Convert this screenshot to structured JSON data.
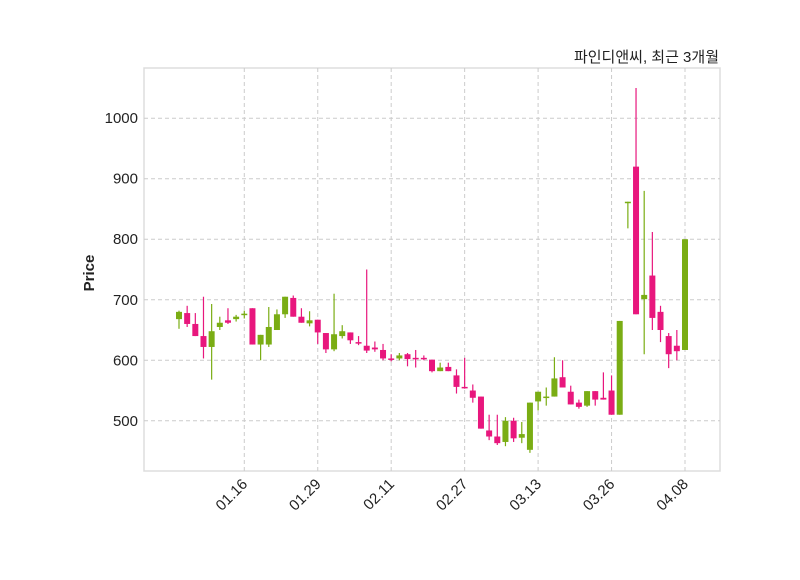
{
  "chart_data": {
    "type": "candlestick",
    "title": "파인디앤씨, 최근 3개월",
    "xlabel": "",
    "ylabel": "Price",
    "ylim": [
      417,
      1083
    ],
    "yticks": [
      500,
      600,
      700,
      800,
      900,
      1000
    ],
    "xtick_labels": [
      {
        "index": 8,
        "label": "01.16"
      },
      {
        "index": 17,
        "label": "01.29"
      },
      {
        "index": 26,
        "label": "02.11"
      },
      {
        "index": 35,
        "label": "02.27"
      },
      {
        "index": 44,
        "label": "03.13"
      },
      {
        "index": 53,
        "label": "03.26"
      },
      {
        "index": 62,
        "label": "04.08"
      }
    ],
    "grid": true,
    "colors": {
      "up": "#7aad14",
      "down": "#e8177d",
      "grid": "#cccccc"
    },
    "ohlc": [
      [
        668,
        682,
        652,
        680
      ],
      [
        678,
        690,
        655,
        660
      ],
      [
        660,
        678,
        640,
        640
      ],
      [
        640,
        705,
        603,
        622
      ],
      [
        622,
        693,
        568,
        648
      ],
      [
        655,
        672,
        650,
        662
      ],
      [
        666,
        686,
        660,
        662
      ],
      [
        668,
        675,
        664,
        672
      ],
      [
        676,
        682,
        669,
        677
      ],
      [
        686,
        686,
        626,
        626
      ],
      [
        626,
        642,
        600,
        642
      ],
      [
        626,
        688,
        622,
        655
      ],
      [
        650,
        684,
        650,
        676
      ],
      [
        676,
        705,
        670,
        705
      ],
      [
        703,
        707,
        672,
        672
      ],
      [
        672,
        686,
        662,
        662
      ],
      [
        661,
        681,
        656,
        666
      ],
      [
        667,
        667,
        627,
        646
      ],
      [
        645,
        645,
        612,
        618
      ],
      [
        618,
        710,
        615,
        643
      ],
      [
        640,
        658,
        636,
        648
      ],
      [
        646,
        646,
        627,
        633
      ],
      [
        630,
        640,
        625,
        628
      ],
      [
        624,
        750,
        612,
        616
      ],
      [
        621,
        631,
        614,
        618
      ],
      [
        617,
        627,
        600,
        603
      ],
      [
        603,
        610,
        598,
        601
      ],
      [
        603,
        612,
        600,
        608
      ],
      [
        610,
        612,
        590,
        602
      ],
      [
        604,
        617,
        588,
        602
      ],
      [
        604,
        608,
        600,
        603
      ],
      [
        601,
        601,
        580,
        582
      ],
      [
        582,
        596,
        582,
        588
      ],
      [
        589,
        596,
        582,
        582
      ],
      [
        575,
        585,
        545,
        556
      ],
      [
        556,
        604,
        553,
        555
      ],
      [
        550,
        560,
        530,
        538
      ],
      [
        540,
        540,
        487,
        487
      ],
      [
        484,
        510,
        468,
        474
      ],
      [
        474,
        510,
        460,
        463
      ],
      [
        465,
        506,
        458,
        500
      ],
      [
        500,
        505,
        465,
        471
      ],
      [
        472,
        498,
        463,
        478
      ],
      [
        452,
        530,
        447,
        530
      ],
      [
        532,
        548,
        517,
        548
      ],
      [
        538,
        555,
        525,
        540
      ],
      [
        540,
        605,
        540,
        570
      ],
      [
        572,
        600,
        555,
        555
      ],
      [
        548,
        558,
        527,
        527
      ],
      [
        530,
        535,
        520,
        523
      ],
      [
        525,
        549,
        523,
        549
      ],
      [
        549,
        549,
        525,
        535
      ],
      [
        538,
        580,
        535,
        535
      ],
      [
        550,
        575,
        510,
        510
      ],
      [
        510,
        665,
        510,
        665
      ],
      [
        862,
        862,
        818,
        862
      ],
      [
        920,
        1050,
        676,
        676
      ],
      [
        701,
        880,
        610,
        708
      ],
      [
        740,
        812,
        650,
        670
      ],
      [
        680,
        690,
        630,
        650
      ],
      [
        640,
        645,
        587,
        610
      ],
      [
        624,
        650,
        600,
        615
      ],
      [
        617,
        800,
        617,
        800
      ]
    ]
  }
}
